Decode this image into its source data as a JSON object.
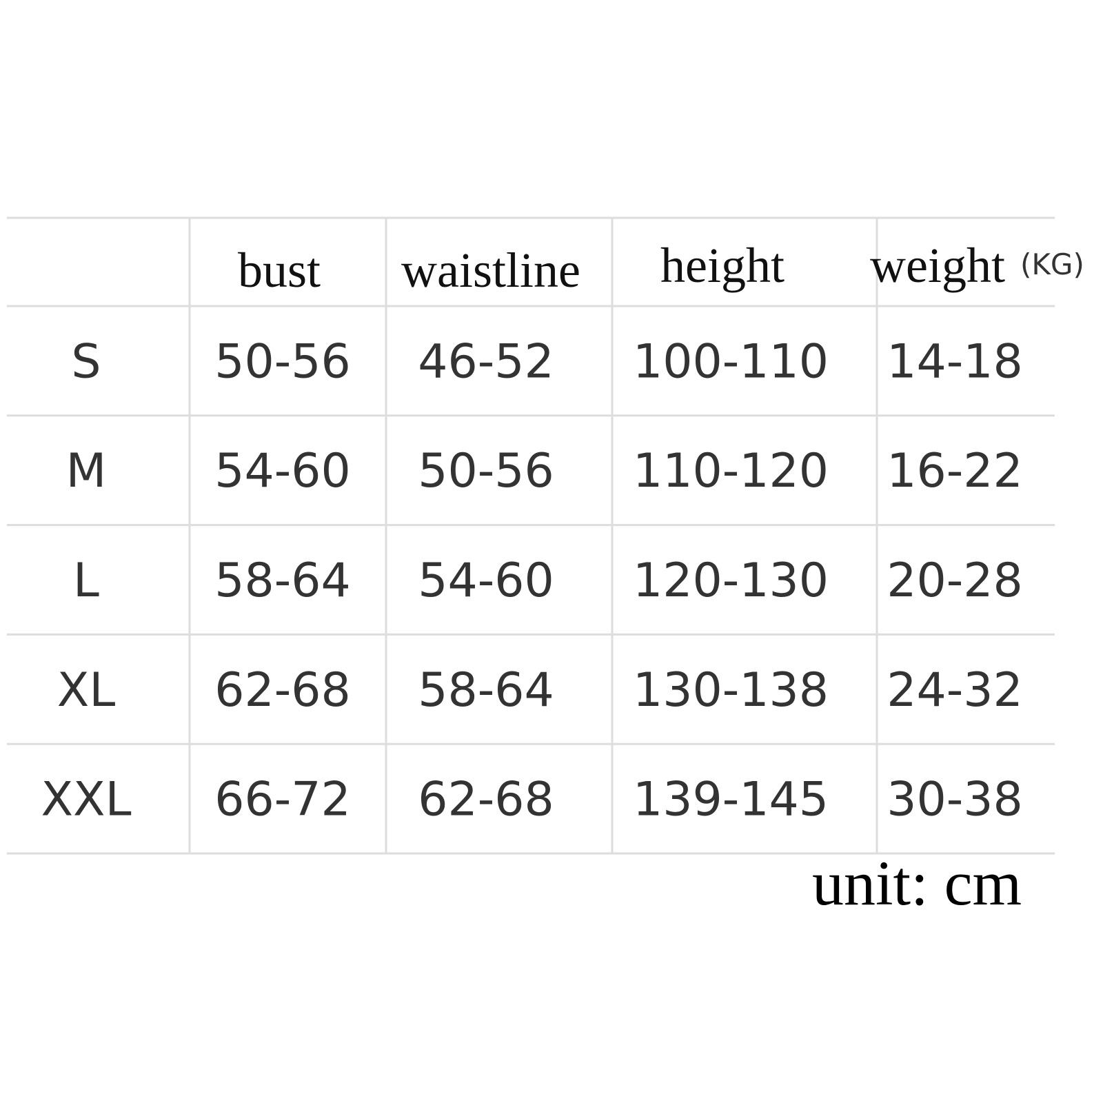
{
  "table": {
    "header": [
      "bust",
      "waistline",
      "height",
      "weight"
    ],
    "header_unit": "(KG)",
    "rows": [
      {
        "size": "S",
        "values": [
          "50-56",
          "46-52",
          "100-110",
          "14-18"
        ]
      },
      {
        "size": "M",
        "values": [
          "54-60",
          "50-56",
          "110-120",
          "16-22"
        ]
      },
      {
        "size": "L",
        "values": [
          "58-64",
          "54-60",
          "120-130",
          "20-28"
        ]
      },
      {
        "size": "XL",
        "values": [
          "62-68",
          "58-64",
          "130-138",
          "24-32"
        ]
      },
      {
        "size": "XXL",
        "values": [
          "66-72",
          "62-68",
          "139-145",
          "30-38"
        ]
      }
    ],
    "note": "unit: cm"
  }
}
